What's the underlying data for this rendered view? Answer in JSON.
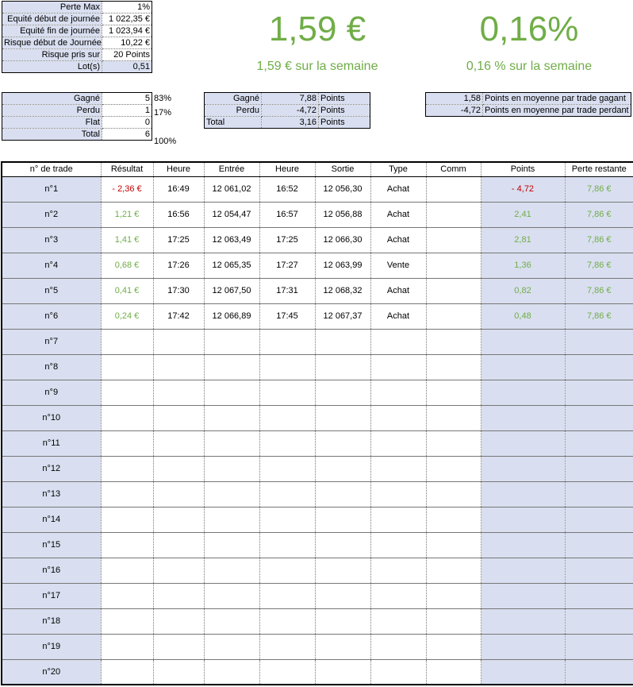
{
  "params": [
    {
      "label": "Perte Max",
      "value": "1%"
    },
    {
      "label": "Equité début de journée",
      "value": "1 022,35 €"
    },
    {
      "label": "Equité fin de journée",
      "value": "1 023,94 €"
    },
    {
      "label": "Risque début de Journée",
      "value": "10,22 €"
    },
    {
      "label": "Risque pris sur",
      "value": "20 Points"
    },
    {
      "label": "Lot(s)",
      "value": "0,51"
    }
  ],
  "result_euro": {
    "value": "1,59 €",
    "sub": "1,59 € sur la semaine"
  },
  "result_pct": {
    "value": "0,16%",
    "sub": "0,16 % sur la semaine"
  },
  "count_stats": [
    {
      "label": "Gagné",
      "value": "5",
      "pct": "83%"
    },
    {
      "label": "Perdu",
      "value": "1",
      "pct": "17%"
    },
    {
      "label": "Flat",
      "value": "0",
      "pct": ""
    },
    {
      "label": "Total",
      "value": "6",
      "pct": "100%"
    }
  ],
  "point_stats": [
    {
      "label": "Gagné",
      "value": "7,88",
      "unit": "Points"
    },
    {
      "label": "Perdu",
      "value": "-4,72",
      "unit": "Points"
    },
    {
      "label": "Total",
      "value": "3,16",
      "unit": "Points"
    }
  ],
  "avg_stats": [
    {
      "value": "1,58",
      "label": "Points en moyenne par trade gagant"
    },
    {
      "value": "-4,72",
      "label": "Points en moyenne par trade perdant"
    }
  ],
  "colors": {
    "positive": "#70ad47",
    "negative": "#c00000",
    "lavender": "#d9dff0"
  },
  "trades": {
    "headers": [
      "n° de trade",
      "Résultat",
      "Heure",
      "Entrée",
      "Heure",
      "Sortie",
      "Type",
      "Comm",
      "Points",
      "Perte restante"
    ],
    "rows": [
      {
        "id": "n°1",
        "result": "- 2,36 €",
        "t_in": "16:49",
        "entry": "12 061,02",
        "t_out": "16:52",
        "exit": "12 056,30",
        "type": "Achat",
        "comm": "",
        "points": "- 4,72",
        "remaining": "7,86 €",
        "negative": true
      },
      {
        "id": "n°2",
        "result": "1,21 €",
        "t_in": "16:56",
        "entry": "12 054,47",
        "t_out": "16:57",
        "exit": "12 056,88",
        "type": "Achat",
        "comm": "",
        "points": "2,41",
        "remaining": "7,86 €",
        "negative": false
      },
      {
        "id": "n°3",
        "result": "1,41 €",
        "t_in": "17:25",
        "entry": "12 063,49",
        "t_out": "17:25",
        "exit": "12 066,30",
        "type": "Achat",
        "comm": "",
        "points": "2,81",
        "remaining": "7,86 €",
        "negative": false
      },
      {
        "id": "n°4",
        "result": "0,68 €",
        "t_in": "17:26",
        "entry": "12 065,35",
        "t_out": "17:27",
        "exit": "12 063,99",
        "type": "Vente",
        "comm": "",
        "points": "1,36",
        "remaining": "7,86 €",
        "negative": false
      },
      {
        "id": "n°5",
        "result": "0,41 €",
        "t_in": "17:30",
        "entry": "12 067,50",
        "t_out": "17:31",
        "exit": "12 068,32",
        "type": "Achat",
        "comm": "",
        "points": "0,82",
        "remaining": "7,86 €",
        "negative": false
      },
      {
        "id": "n°6",
        "result": "0,24 €",
        "t_in": "17:42",
        "entry": "12 066,89",
        "t_out": "17:45",
        "exit": "12 067,37",
        "type": "Achat",
        "comm": "",
        "points": "0,48",
        "remaining": "7,86 €",
        "negative": false
      },
      {
        "id": "n°7"
      },
      {
        "id": "n°8"
      },
      {
        "id": "n°9"
      },
      {
        "id": "n°10"
      },
      {
        "id": "n°11"
      },
      {
        "id": "n°12"
      },
      {
        "id": "n°13"
      },
      {
        "id": "n°14"
      },
      {
        "id": "n°15"
      },
      {
        "id": "n°16"
      },
      {
        "id": "n°17"
      },
      {
        "id": "n°18"
      },
      {
        "id": "n°19"
      },
      {
        "id": "n°20"
      }
    ]
  }
}
